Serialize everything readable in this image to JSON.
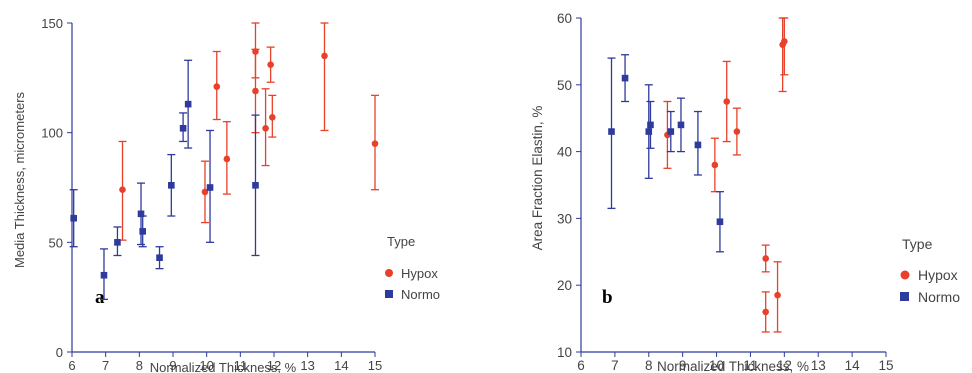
{
  "colors": {
    "hypox": "#e8402a",
    "normo": "#2e3a9c",
    "axis": "#2e3a9c",
    "text": "#444444"
  },
  "chart_data": [
    {
      "type": "scatter",
      "panel_label": "a",
      "title": "",
      "xlabel": "Normalized Thickness, %",
      "ylabel": "Media Thickness, micrometers",
      "xlim": [
        6,
        15
      ],
      "ylim": [
        0,
        150
      ],
      "xticks": [
        6,
        7,
        8,
        9,
        10,
        11,
        12,
        13,
        14,
        15
      ],
      "yticks": [
        0,
        50,
        100,
        150
      ],
      "grid": false,
      "legend": {
        "title": "Type",
        "placement": "right",
        "entries": [
          "Hypox",
          "Normo"
        ]
      },
      "series": [
        {
          "name": "Hypox",
          "marker": "circle",
          "color": "#e8402a",
          "points": [
            {
              "x": 7.5,
              "y": 74,
              "ylo": 51,
              "yhi": 96
            },
            {
              "x": 9.95,
              "y": 73,
              "ylo": 59,
              "yhi": 87
            },
            {
              "x": 10.3,
              "y": 121,
              "ylo": 106,
              "yhi": 137
            },
            {
              "x": 10.6,
              "y": 88,
              "ylo": 72,
              "yhi": 105
            },
            {
              "x": 11.45,
              "y": 137,
              "ylo": 125,
              "yhi": 150
            },
            {
              "x": 11.45,
              "y": 119,
              "ylo": 100,
              "yhi": 138
            },
            {
              "x": 11.75,
              "y": 102,
              "ylo": 85,
              "yhi": 120
            },
            {
              "x": 11.9,
              "y": 131,
              "ylo": 123,
              "yhi": 139
            },
            {
              "x": 11.95,
              "y": 107,
              "ylo": 98,
              "yhi": 117
            },
            {
              "x": 13.5,
              "y": 135,
              "ylo": 101,
              "yhi": 150
            },
            {
              "x": 15.0,
              "y": 95,
              "ylo": 74,
              "yhi": 117
            }
          ]
        },
        {
          "name": "Normo",
          "marker": "square",
          "color": "#2e3a9c",
          "points": [
            {
              "x": 6.05,
              "y": 61,
              "ylo": 48,
              "yhi": 74
            },
            {
              "x": 6.95,
              "y": 35,
              "ylo": 24,
              "yhi": 47
            },
            {
              "x": 7.35,
              "y": 50,
              "ylo": 44,
              "yhi": 57
            },
            {
              "x": 8.05,
              "y": 63,
              "ylo": 49,
              "yhi": 77
            },
            {
              "x": 8.1,
              "y": 55,
              "ylo": 48,
              "yhi": 62
            },
            {
              "x": 8.6,
              "y": 43,
              "ylo": 38,
              "yhi": 48
            },
            {
              "x": 8.95,
              "y": 76,
              "ylo": 62,
              "yhi": 90
            },
            {
              "x": 9.3,
              "y": 102,
              "ylo": 96,
              "yhi": 109
            },
            {
              "x": 9.45,
              "y": 113,
              "ylo": 93,
              "yhi": 133
            },
            {
              "x": 10.1,
              "y": 75,
              "ylo": 50,
              "yhi": 101
            },
            {
              "x": 11.45,
              "y": 76,
              "ylo": 44,
              "yhi": 108
            }
          ]
        }
      ]
    },
    {
      "type": "scatter",
      "panel_label": "b",
      "title": "",
      "xlabel": "Normalized Thickness, %",
      "ylabel": "Area Fraction Elastin, %",
      "xlim": [
        6,
        15
      ],
      "ylim": [
        10,
        60
      ],
      "xticks": [
        6,
        7,
        8,
        9,
        10,
        11,
        12,
        13,
        14,
        15
      ],
      "yticks": [
        10,
        20,
        30,
        40,
        50,
        60
      ],
      "grid": false,
      "legend": {
        "title": "Type",
        "placement": "right",
        "entries": [
          "Hypox",
          "Normo"
        ]
      },
      "series": [
        {
          "name": "Hypox",
          "marker": "circle",
          "color": "#e8402a",
          "points": [
            {
              "x": 8.55,
              "y": 42.5,
              "ylo": 37.5,
              "yhi": 47.5
            },
            {
              "x": 9.95,
              "y": 38,
              "ylo": 34,
              "yhi": 42
            },
            {
              "x": 10.3,
              "y": 47.5,
              "ylo": 41.5,
              "yhi": 53.5
            },
            {
              "x": 10.6,
              "y": 43,
              "ylo": 39.5,
              "yhi": 46.5
            },
            {
              "x": 11.45,
              "y": 24,
              "ylo": 22,
              "yhi": 26
            },
            {
              "x": 11.45,
              "y": 16,
              "ylo": 13,
              "yhi": 19
            },
            {
              "x": 11.8,
              "y": 18.5,
              "ylo": 13,
              "yhi": 23.5
            },
            {
              "x": 11.95,
              "y": 56,
              "ylo": 49,
              "yhi": 60
            },
            {
              "x": 12.0,
              "y": 56.5,
              "ylo": 51.5,
              "yhi": 60
            }
          ]
        },
        {
          "name": "Normo",
          "marker": "square",
          "color": "#2e3a9c",
          "points": [
            {
              "x": 6.9,
              "y": 43,
              "ylo": 31.5,
              "yhi": 54
            },
            {
              "x": 7.3,
              "y": 51,
              "ylo": 47.5,
              "yhi": 54.5
            },
            {
              "x": 8.0,
              "y": 43,
              "ylo": 36,
              "yhi": 50
            },
            {
              "x": 8.05,
              "y": 44,
              "ylo": 40.5,
              "yhi": 47.5
            },
            {
              "x": 8.65,
              "y": 43,
              "ylo": 40,
              "yhi": 46
            },
            {
              "x": 8.95,
              "y": 44,
              "ylo": 40,
              "yhi": 48
            },
            {
              "x": 9.45,
              "y": 41,
              "ylo": 36.5,
              "yhi": 46
            },
            {
              "x": 10.1,
              "y": 29.5,
              "ylo": 25,
              "yhi": 34
            }
          ]
        }
      ]
    }
  ]
}
